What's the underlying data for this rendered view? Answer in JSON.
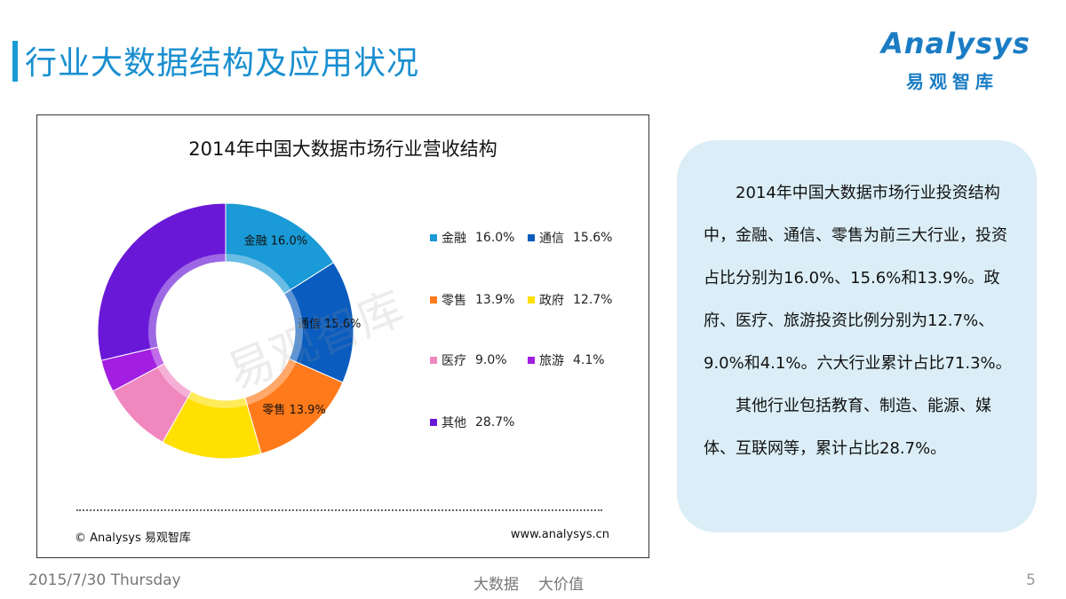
{
  "header": {
    "title": "行业大数据结构及应用状况",
    "logo_en": "Analysys",
    "logo_cn": "易观智库"
  },
  "chart_data": {
    "type": "pie",
    "title": "2014年中国大数据市场行业营收结构",
    "style": "donut",
    "watermark": "易观智库",
    "slices": [
      {
        "label": "金融",
        "value": 16.0,
        "value_text": "16.0%",
        "color": "#1a9ad6"
      },
      {
        "label": "通信",
        "value": 15.6,
        "value_text": "15.6%",
        "color": "#0a5cbf"
      },
      {
        "label": "零售",
        "value": 13.9,
        "value_text": "13.9%",
        "color": "#ff7a1a"
      },
      {
        "label": "政府",
        "value": 12.7,
        "value_text": "12.7%",
        "color": "#ffe000"
      },
      {
        "label": "医疗",
        "value": 9.0,
        "value_text": "9.0%",
        "color": "#f088bf"
      },
      {
        "label": "旅游",
        "value": 4.1,
        "value_text": "4.1%",
        "color": "#a21ee0"
      },
      {
        "label": "其他",
        "value": 28.7,
        "value_text": "28.7%",
        "color": "#6a18d8"
      }
    ],
    "source": "© Analysys 易观智库",
    "url": "www.analysys.cn"
  },
  "note": {
    "paragraphs": [
      "2014年中国大数据市场行业投资结构中，金融、通信、零售为前三大行业，投资占比分别为16.0%、15.6%和13.9%。政府、医疗、旅游投资比例分别为12.7%、9.0%和4.1%。六大行业累计占比71.3%。",
      "其他行业包括教育、制造、能源、媒体、互联网等，累计占比28.7%。"
    ]
  },
  "footer": {
    "date": "2015/7/30 Thursday",
    "tagline_1": "大数据",
    "tagline_2": "大价值",
    "page_number": "5"
  }
}
